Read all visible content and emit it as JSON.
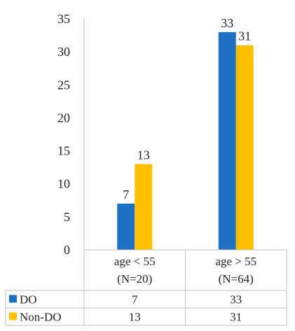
{
  "chart_data": {
    "type": "bar",
    "title": "",
    "xlabel": "",
    "ylabel": "",
    "ylim": [
      0,
      35
    ],
    "yticks": [
      0,
      5,
      10,
      15,
      20,
      25,
      30,
      35
    ],
    "grid": false,
    "legend": "data-table-left",
    "categories": [
      {
        "line1": "age < 55",
        "line2": "(N=20)"
      },
      {
        "line1": "age > 55",
        "line2": "(N=64)"
      }
    ],
    "series": [
      {
        "name": "DO",
        "color": "#1F6FC5",
        "values": [
          7,
          33
        ]
      },
      {
        "name": "Non-DO",
        "color": "#FFC000",
        "values": [
          13,
          31
        ]
      }
    ]
  }
}
